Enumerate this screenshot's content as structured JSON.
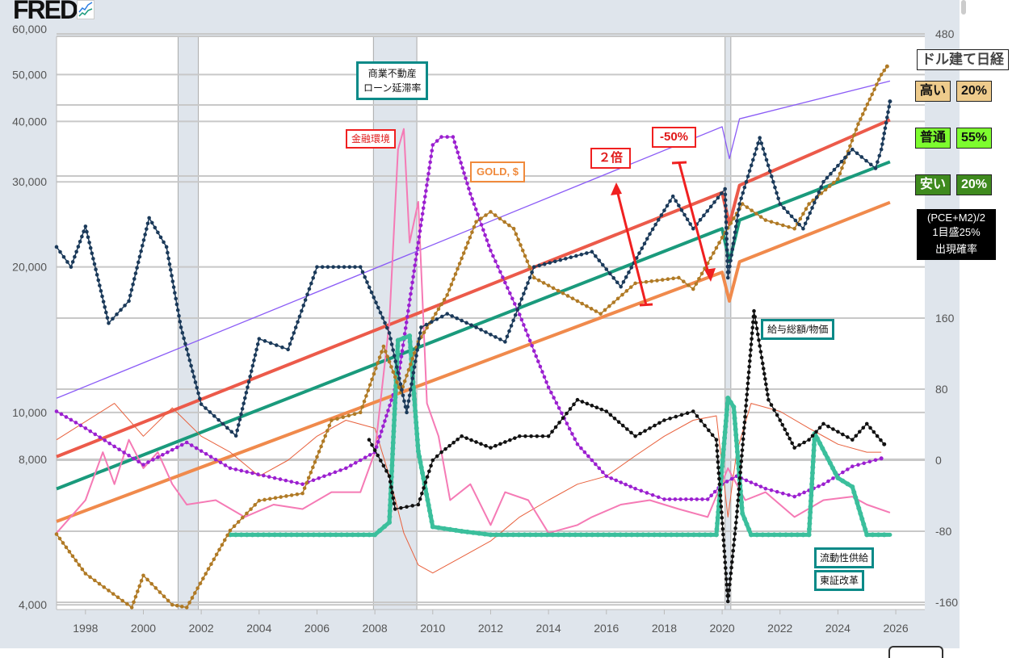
{
  "header": {
    "logo": "FRED"
  },
  "chart_data": {
    "type": "line",
    "x_range": [
      1997,
      2027
    ],
    "x_ticks": [
      "1998",
      "2000",
      "2002",
      "2004",
      "2006",
      "2008",
      "2010",
      "2012",
      "2014",
      "2016",
      "2018",
      "2020",
      "2022",
      "2024",
      "2026"
    ],
    "left_axis": {
      "scale": "log",
      "range": [
        4000,
        60000
      ],
      "ticks": [
        {
          "v": 60000,
          "label": "60,000"
        },
        {
          "v": 50000,
          "label": "50,000"
        },
        {
          "v": 40000,
          "label": "40,000"
        },
        {
          "v": 30000,
          "label": "30,000"
        },
        {
          "v": 20000,
          "label": "20,000"
        },
        {
          "v": 10000,
          "label": "10,000"
        },
        {
          "v": 8000,
          "label": "8,000"
        },
        {
          "v": 4000,
          "label": "4,000"
        }
      ]
    },
    "right_axis": {
      "scale": "linear",
      "range": [
        -160,
        480
      ],
      "ticks": [
        {
          "v": 480,
          "label": "480"
        },
        {
          "v": 160,
          "label": "160"
        },
        {
          "v": 80,
          "label": "80"
        },
        {
          "v": 0,
          "label": "0"
        },
        {
          "v": -80,
          "label": "-80"
        },
        {
          "v": -160,
          "label": "-160"
        }
      ],
      "grid_only": [
        400,
        320
      ]
    },
    "recessions": [
      [
        2001.2,
        2001.9
      ],
      [
        2007.95,
        2009.45
      ],
      [
        2020.1,
        2020.3
      ]
    ],
    "series": [
      {
        "name": "trend-upper-purple",
        "axis": "left",
        "color": "#8b5cf6",
        "width": 1.3,
        "dots": false,
        "points": [
          [
            1997,
            10700
          ],
          [
            2020.0,
            39000
          ],
          [
            2020.25,
            33500
          ],
          [
            2020.6,
            40500
          ],
          [
            2025.8,
            48500
          ]
        ]
      },
      {
        "name": "trend-high-red",
        "axis": "left",
        "color": "#ec5a4a",
        "width": 4,
        "dots": false,
        "points": [
          [
            1997,
            8100
          ],
          [
            2020.0,
            28500
          ],
          [
            2020.25,
            24500
          ],
          [
            2020.6,
            29500
          ],
          [
            2025.8,
            40300
          ]
        ]
      },
      {
        "name": "trend-mid-teal",
        "axis": "left",
        "color": "#1a9a7c",
        "width": 4,
        "dots": false,
        "points": [
          [
            1997,
            6950
          ],
          [
            2020.0,
            24000
          ],
          [
            2020.25,
            20500
          ],
          [
            2020.6,
            25000
          ],
          [
            2025.8,
            33000
          ]
        ]
      },
      {
        "name": "trend-low-orange",
        "axis": "left",
        "color": "#f08a4c",
        "width": 4,
        "dots": false,
        "points": [
          [
            1997,
            5950
          ],
          [
            2020.0,
            19500
          ],
          [
            2020.25,
            17000
          ],
          [
            2020.6,
            20500
          ],
          [
            2025.8,
            27200
          ]
        ]
      },
      {
        "name": "thin-orange-line",
        "axis": "right",
        "color": "#e8603c",
        "width": 1,
        "dots": false,
        "points": [
          [
            1997,
            23
          ],
          [
            1999,
            64
          ],
          [
            2000,
            27
          ],
          [
            2001,
            59
          ],
          [
            2002,
            27
          ],
          [
            2003,
            9
          ],
          [
            2004,
            -18
          ],
          [
            2005,
            0
          ],
          [
            2006,
            27
          ],
          [
            2007,
            45
          ],
          [
            2008,
            36
          ],
          [
            2008.5,
            -18
          ],
          [
            2009,
            -82
          ],
          [
            2009.5,
            -118
          ],
          [
            2010,
            -127
          ],
          [
            2011,
            -109
          ],
          [
            2012,
            -91
          ],
          [
            2013,
            -64
          ],
          [
            2014,
            -45
          ],
          [
            2015,
            -27
          ],
          [
            2016,
            -18
          ],
          [
            2017,
            5
          ],
          [
            2018,
            27
          ],
          [
            2019,
            45
          ],
          [
            2019.8,
            50
          ],
          [
            2020.2,
            -64
          ],
          [
            2020.5,
            9
          ],
          [
            2021,
            64
          ],
          [
            2022,
            55
          ],
          [
            2023,
            36
          ],
          [
            2024,
            18
          ],
          [
            2025,
            9
          ],
          [
            2025.5,
            9
          ]
        ]
      },
      {
        "name": "financial-conditions-pink",
        "axis": "right",
        "color": "#f57ab5",
        "width": 2,
        "dots": false,
        "points": [
          [
            1997,
            -82
          ],
          [
            1998,
            -45
          ],
          [
            1998.6,
            9
          ],
          [
            1999,
            -27
          ],
          [
            1999.5,
            23
          ],
          [
            2000,
            -9
          ],
          [
            2000.5,
            9
          ],
          [
            2001,
            -27
          ],
          [
            2001.5,
            -50
          ],
          [
            2002.5,
            -45
          ],
          [
            2003.5,
            -64
          ],
          [
            2004.5,
            -50
          ],
          [
            2005.5,
            -55
          ],
          [
            2006.5,
            -36
          ],
          [
            2007.5,
            -36
          ],
          [
            2008,
            9
          ],
          [
            2008.5,
            155
          ],
          [
            2008.8,
            350
          ],
          [
            2009,
            373
          ],
          [
            2009.2,
            245
          ],
          [
            2009.5,
            291
          ],
          [
            2009.8,
            64
          ],
          [
            2010.2,
            27
          ],
          [
            2010.6,
            -45
          ],
          [
            2011.3,
            -27
          ],
          [
            2012,
            -73
          ],
          [
            2012.5,
            -36
          ],
          [
            2013.3,
            -45
          ],
          [
            2014,
            -82
          ],
          [
            2015,
            -73
          ],
          [
            2015.5,
            -64
          ],
          [
            2016.5,
            -50
          ],
          [
            2017.5,
            -45
          ],
          [
            2018.5,
            -55
          ],
          [
            2019.5,
            -64
          ],
          [
            2020.2,
            -9
          ],
          [
            2020.8,
            -45
          ],
          [
            2021.5,
            -36
          ],
          [
            2022.5,
            -64
          ],
          [
            2023.5,
            -45
          ],
          [
            2024.5,
            -41
          ],
          [
            2025,
            -50
          ],
          [
            2025.8,
            -59
          ]
        ]
      },
      {
        "name": "rate-purple-dotted",
        "axis": "right",
        "color": "#9b1fd0",
        "width": 1.2,
        "dots": true,
        "points": [
          [
            1997,
            55
          ],
          [
            1998,
            36
          ],
          [
            2000,
            -5
          ],
          [
            2001.5,
            20
          ],
          [
            2003,
            -9
          ],
          [
            2005.5,
            -27
          ],
          [
            2007,
            -9
          ],
          [
            2008,
            9
          ],
          [
            2008.8,
            91
          ],
          [
            2009.5,
            245
          ],
          [
            2010,
            355
          ],
          [
            2010.3,
            364
          ],
          [
            2010.7,
            364
          ],
          [
            2011.3,
            300
          ],
          [
            2012,
            236
          ],
          [
            2013,
            164
          ],
          [
            2014,
            82
          ],
          [
            2015,
            18
          ],
          [
            2016,
            -18
          ],
          [
            2017,
            -32
          ],
          [
            2018,
            -44
          ],
          [
            2019.5,
            -44
          ],
          [
            2020,
            -27
          ],
          [
            2020.5,
            -18
          ],
          [
            2021.5,
            -32
          ],
          [
            2022.5,
            -41
          ],
          [
            2023.5,
            -27
          ],
          [
            2024.5,
            -7
          ],
          [
            2025.5,
            2
          ]
        ]
      },
      {
        "name": "liquidity-supply-teal",
        "axis": "right",
        "color": "#3bbf9c",
        "width": 5,
        "dots": true,
        "points": [
          [
            2003,
            -84
          ],
          [
            2008,
            -84
          ],
          [
            2008.5,
            -70
          ],
          [
            2008.8,
            135
          ],
          [
            2009.2,
            140
          ],
          [
            2009.5,
            10
          ],
          [
            2010,
            -75
          ],
          [
            2011,
            -80
          ],
          [
            2012,
            -84
          ],
          [
            2019.8,
            -84
          ],
          [
            2020.2,
            70
          ],
          [
            2020.4,
            60
          ],
          [
            2020.7,
            -60
          ],
          [
            2021,
            -84
          ],
          [
            2023,
            -84
          ],
          [
            2023.2,
            30
          ],
          [
            2024,
            -20
          ],
          [
            2024.5,
            -30
          ],
          [
            2025,
            -84
          ],
          [
            2025.8,
            -84
          ]
        ]
      },
      {
        "name": "wages-over-prices-black",
        "axis": "right",
        "color": "#111111",
        "width": 1.3,
        "dots": true,
        "points": [
          [
            2007.8,
            23
          ],
          [
            2008.5,
            -18
          ],
          [
            2008.7,
            -55
          ],
          [
            2009.5,
            -50
          ],
          [
            2010,
            0
          ],
          [
            2010.3,
            9
          ],
          [
            2011,
            27
          ],
          [
            2012,
            14
          ],
          [
            2013,
            27
          ],
          [
            2014,
            27
          ],
          [
            2015,
            68
          ],
          [
            2016,
            55
          ],
          [
            2017,
            27
          ],
          [
            2018,
            45
          ],
          [
            2019,
            55
          ],
          [
            2019.8,
            23
          ],
          [
            2020.2,
            -159
          ],
          [
            2020.5,
            -64
          ],
          [
            2021.1,
            168
          ],
          [
            2021.4,
            109
          ],
          [
            2021.6,
            68
          ],
          [
            2022,
            45
          ],
          [
            2022.5,
            14
          ],
          [
            2023,
            23
          ],
          [
            2023.5,
            41
          ],
          [
            2024.5,
            23
          ],
          [
            2025,
            41
          ],
          [
            2025.6,
            18
          ]
        ]
      },
      {
        "name": "gold-usd",
        "axis": "left",
        "color": "#b07a25",
        "width": 1.5,
        "dots": true,
        "points": [
          [
            1997,
            5600
          ],
          [
            1998,
            4640
          ],
          [
            1999.6,
            3950
          ],
          [
            2000,
            4600
          ],
          [
            2001,
            4000
          ],
          [
            2001.5,
            3950
          ],
          [
            2003,
            5700
          ],
          [
            2004,
            6570
          ],
          [
            2005.5,
            6800
          ],
          [
            2006.5,
            9630
          ],
          [
            2007.5,
            10000
          ],
          [
            2008.3,
            13700
          ],
          [
            2008.9,
            11000
          ],
          [
            2009.5,
            14000
          ],
          [
            2010.5,
            17500
          ],
          [
            2011.5,
            24800
          ],
          [
            2012,
            26000
          ],
          [
            2012.8,
            24000
          ],
          [
            2013.5,
            19000
          ],
          [
            2015,
            17000
          ],
          [
            2015.8,
            16000
          ],
          [
            2017,
            18500
          ],
          [
            2018.5,
            19000
          ],
          [
            2019,
            18000
          ],
          [
            2020,
            23000
          ],
          [
            2020.7,
            27000
          ],
          [
            2021.5,
            25000
          ],
          [
            2022.5,
            24000
          ],
          [
            2023,
            27000
          ],
          [
            2024,
            30400
          ],
          [
            2024.7,
            39500
          ],
          [
            2025.5,
            50000
          ],
          [
            2025.7,
            52000
          ]
        ]
      },
      {
        "name": "nikkei-usd",
        "axis": "left",
        "color": "#1b3a5a",
        "width": 1.5,
        "dots": true,
        "points": [
          [
            1997,
            22000
          ],
          [
            1997.5,
            20000
          ],
          [
            1998,
            24260
          ],
          [
            1998.8,
            15300
          ],
          [
            1999.5,
            17000
          ],
          [
            2000.2,
            25260
          ],
          [
            2000.8,
            22000
          ],
          [
            2001.3,
            15000
          ],
          [
            2002,
            10400
          ],
          [
            2003.2,
            8950
          ],
          [
            2004,
            14200
          ],
          [
            2005,
            13500
          ],
          [
            2006,
            20000
          ],
          [
            2007.5,
            20000
          ],
          [
            2008.5,
            14600
          ],
          [
            2009.1,
            10000
          ],
          [
            2009.6,
            15000
          ],
          [
            2010.5,
            16000
          ],
          [
            2011.5,
            15000
          ],
          [
            2012.5,
            14000
          ],
          [
            2013.5,
            20000
          ],
          [
            2015.5,
            21500
          ],
          [
            2016.5,
            18200
          ],
          [
            2017.5,
            23400
          ],
          [
            2018.3,
            28000
          ],
          [
            2019,
            24000
          ],
          [
            2020.1,
            29000
          ],
          [
            2020.2,
            19000
          ],
          [
            2020.6,
            27000
          ],
          [
            2021.3,
            37000
          ],
          [
            2022,
            27000
          ],
          [
            2022.8,
            24000
          ],
          [
            2023.5,
            30000
          ],
          [
            2024.5,
            35000
          ],
          [
            2025.3,
            32000
          ],
          [
            2025.5,
            35000
          ],
          [
            2025.8,
            44000
          ]
        ]
      }
    ]
  },
  "annotations": {
    "cre_loan_line1": "商業不動産",
    "cre_loan_line2": "ローン延滞率",
    "financial_conditions": "金融環境",
    "gold": "GOLD, $",
    "double": "２倍",
    "minus50": "-50%",
    "wages_prices": "給与総額/物価",
    "liquidity": "流動性供給",
    "tse_reform": "東証改革"
  },
  "legend": {
    "title": "ドル建て日経",
    "rows": [
      {
        "label": "高い",
        "value": "20%",
        "bg": "#eecb8c",
        "fg": "#111"
      },
      {
        "label": "普通",
        "value": "55%",
        "bg": "#7dfc2e",
        "fg": "#111"
      },
      {
        "label": "安い",
        "value": "20%",
        "bg": "#3f8a1e",
        "fg": "#fff"
      }
    ],
    "note_line1": "(PCE+M2)/2",
    "note_line2": "1目盛25%",
    "note_line3": "出現確率"
  }
}
